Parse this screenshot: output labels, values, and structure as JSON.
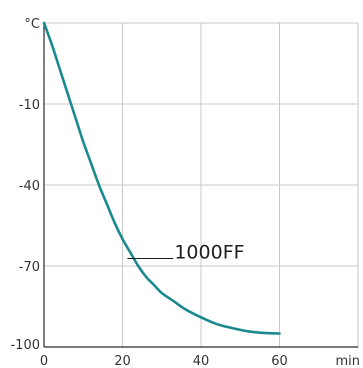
{
  "chart_data": {
    "type": "line",
    "title": "",
    "ylabel": "°C",
    "xlabel": "min",
    "xlim": [
      0,
      80
    ],
    "ylim": [
      -100,
      20
    ],
    "x_ticks": [
      0,
      20,
      40,
      60
    ],
    "y_ticks": [
      -100,
      -70,
      -40,
      -10
    ],
    "grid": true,
    "series": [
      {
        "name": "1000FF",
        "color": "#1a8a8e",
        "x": [
          0,
          2,
          4,
          6,
          8,
          10,
          12,
          14,
          16,
          18,
          20,
          22,
          24,
          26,
          28,
          30,
          33,
          36,
          40,
          44,
          48,
          52,
          56,
          60
        ],
        "y": [
          20,
          12,
          3,
          -6,
          -15,
          -24,
          -32,
          -40,
          -47,
          -54,
          -60,
          -65,
          -70,
          -74,
          -77,
          -80,
          -83,
          -86,
          -89,
          -91.5,
          -93,
          -94.2,
          -94.8,
          -95
        ]
      }
    ]
  }
}
